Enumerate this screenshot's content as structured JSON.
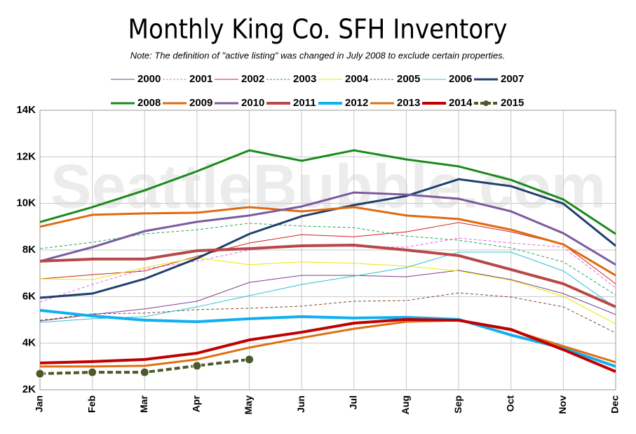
{
  "chart_data": {
    "type": "line",
    "title": "Monthly King Co. SFH Inventory",
    "subtitle": "Note: The definition of \"active listing\" was changed in July 2008 to exclude certain properties.",
    "watermark": "SeattleBubble.com",
    "categories": [
      "Jan",
      "Feb",
      "Mar",
      "Apr",
      "May",
      "Jun",
      "Jul",
      "Aug",
      "Sep",
      "Oct",
      "Nov",
      "Dec"
    ],
    "ylim": [
      2000,
      14000
    ],
    "yticks": [
      {
        "value": 2000,
        "label": "2K"
      },
      {
        "value": 4000,
        "label": "4K"
      },
      {
        "value": 6000,
        "label": "6K"
      },
      {
        "value": 8000,
        "label": "8K"
      },
      {
        "value": 10000,
        "label": "10K"
      },
      {
        "value": 12000,
        "label": "12K"
      },
      {
        "value": 14000,
        "label": "14K"
      }
    ],
    "grid": true,
    "legend": "top",
    "series": [
      {
        "name": "2000",
        "color": "#7b3f8c",
        "width": 1,
        "dashed": false,
        "values": [
          4950,
          5230,
          5470,
          5800,
          6610,
          6910,
          6910,
          6850,
          7130,
          6730,
          6130,
          5230
        ]
      },
      {
        "name": "2001",
        "color": "#e066e0",
        "width": 1,
        "dashed": true,
        "values": [
          5770,
          6520,
          7190,
          7520,
          8000,
          8210,
          8150,
          8120,
          8510,
          8300,
          8120,
          6370
        ]
      },
      {
        "name": "2002",
        "color": "#d42020",
        "width": 1,
        "dashed": false,
        "values": [
          6760,
          6940,
          7100,
          7730,
          8300,
          8660,
          8570,
          8780,
          9180,
          8780,
          8240,
          6550
        ]
      },
      {
        "name": "2003",
        "color": "#2aa35a",
        "width": 1,
        "dashed": true,
        "values": [
          8060,
          8330,
          8690,
          8870,
          9150,
          9030,
          8960,
          8600,
          8420,
          8090,
          7490,
          6070
        ]
      },
      {
        "name": "2004",
        "color": "#e8e800",
        "width": 1,
        "dashed": false,
        "values": [
          6760,
          6730,
          7250,
          7670,
          7370,
          7490,
          7430,
          7310,
          7100,
          6700,
          6010,
          4830
        ]
      },
      {
        "name": "2005",
        "color": "#7a4a2a",
        "width": 1,
        "dashed": true,
        "values": [
          4980,
          5260,
          5290,
          5440,
          5500,
          5590,
          5800,
          5830,
          6160,
          5980,
          5560,
          4440
        ]
      },
      {
        "name": "2006",
        "color": "#30c0d0",
        "width": 1,
        "dashed": false,
        "values": [
          4890,
          5050,
          5140,
          5560,
          6040,
          6520,
          6880,
          7250,
          7910,
          7910,
          7100,
          5530
        ]
      },
      {
        "name": "2007",
        "color": "#1f3f6e",
        "width": 3,
        "dashed": false,
        "values": [
          5950,
          6130,
          6760,
          7640,
          8690,
          9450,
          9930,
          10320,
          11040,
          10740,
          9990,
          8180
        ]
      },
      {
        "name": "2008",
        "color": "#1a8a1a",
        "width": 3,
        "dashed": false,
        "values": [
          9200,
          9840,
          10560,
          11380,
          12280,
          11830,
          12280,
          11890,
          11590,
          11010,
          10170,
          8690
        ]
      },
      {
        "name": "2009",
        "color": "#e06a10",
        "width": 3,
        "dashed": false,
        "values": [
          9000,
          9510,
          9570,
          9600,
          9840,
          9660,
          9840,
          9480,
          9330,
          8870,
          8240,
          6910
        ]
      },
      {
        "name": "2010",
        "color": "#7a5aa0",
        "width": 3,
        "dashed": false,
        "values": [
          7520,
          8120,
          8810,
          9210,
          9480,
          9870,
          10470,
          10380,
          10200,
          9660,
          8720,
          7370
        ]
      },
      {
        "name": "2011",
        "color": "#b84848",
        "width": 4,
        "dashed": false,
        "values": [
          7520,
          7610,
          7610,
          7970,
          8060,
          8180,
          8210,
          8000,
          7760,
          7160,
          6550,
          5560
        ]
      },
      {
        "name": "2012",
        "color": "#10b0f0",
        "width": 4,
        "dashed": false,
        "values": [
          5410,
          5170,
          4990,
          4920,
          5050,
          5140,
          5080,
          5110,
          5020,
          4350,
          3780,
          3000
        ]
      },
      {
        "name": "2013",
        "color": "#e07010",
        "width": 3,
        "dashed": false,
        "values": [
          3000,
          3000,
          3030,
          3300,
          3810,
          4230,
          4620,
          4920,
          4980,
          4560,
          3870,
          3180
        ]
      },
      {
        "name": "2014",
        "color": "#c00000",
        "width": 4,
        "dashed": false,
        "values": [
          3150,
          3210,
          3300,
          3570,
          4140,
          4470,
          4860,
          5020,
          4980,
          4590,
          3720,
          2780
        ]
      },
      {
        "name": "2015",
        "color": "#4a5a2a",
        "width": 4,
        "dashed": true,
        "marker": "circle",
        "values": [
          2690,
          2750,
          2750,
          3030,
          3300,
          null,
          null,
          null,
          null,
          null,
          null,
          null
        ]
      }
    ]
  }
}
